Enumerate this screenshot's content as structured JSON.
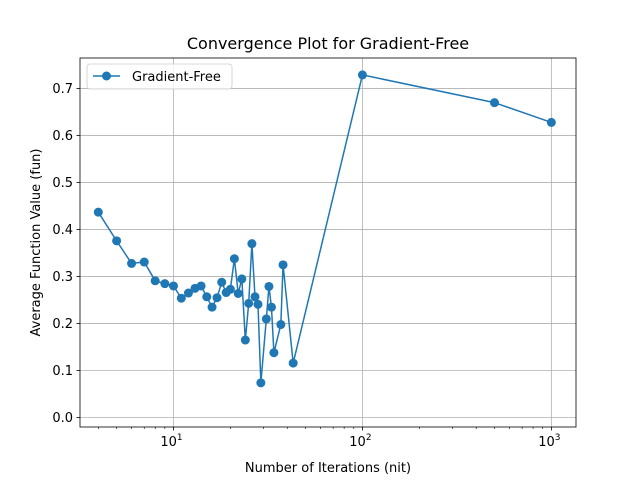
{
  "chart_data": {
    "type": "line",
    "title": "Convergence Plot for Gradient-Free",
    "xlabel": "Number of Iterations (nit)",
    "ylabel": "Average Function Value (fun)",
    "xscale": "log",
    "xlim": [
      3.2,
      1350
    ],
    "ylim": [
      -0.02,
      0.765
    ],
    "grid": true,
    "legend_loc": "upper left",
    "x_ticks": [
      {
        "value": 10,
        "base": "10",
        "exp": "1"
      },
      {
        "value": 100,
        "base": "10",
        "exp": "2"
      },
      {
        "value": 1000,
        "base": "10",
        "exp": "3"
      }
    ],
    "y_ticks": [
      {
        "value": 0.0,
        "label": "0.0"
      },
      {
        "value": 0.1,
        "label": "0.1"
      },
      {
        "value": 0.2,
        "label": "0.2"
      },
      {
        "value": 0.3,
        "label": "0.3"
      },
      {
        "value": 0.4,
        "label": "0.4"
      },
      {
        "value": 0.5,
        "label": "0.5"
      },
      {
        "value": 0.6,
        "label": "0.6"
      },
      {
        "value": 0.7,
        "label": "0.7"
      }
    ],
    "series": [
      {
        "name": "Gradient-Free",
        "color": "#1f77b4",
        "marker": "circle",
        "points": [
          [
            4,
            0.437
          ],
          [
            5,
            0.376
          ],
          [
            6,
            0.328
          ],
          [
            7,
            0.331
          ],
          [
            8,
            0.291
          ],
          [
            9,
            0.285
          ],
          [
            10,
            0.28
          ],
          [
            11,
            0.254
          ],
          [
            12,
            0.265
          ],
          [
            13,
            0.275
          ],
          [
            14,
            0.28
          ],
          [
            15,
            0.257
          ],
          [
            16,
            0.235
          ],
          [
            17,
            0.255
          ],
          [
            18,
            0.288
          ],
          [
            19,
            0.266
          ],
          [
            20,
            0.273
          ],
          [
            21,
            0.338
          ],
          [
            22,
            0.264
          ],
          [
            23,
            0.295
          ],
          [
            24,
            0.165
          ],
          [
            25,
            0.243
          ],
          [
            26,
            0.37
          ],
          [
            27,
            0.257
          ],
          [
            28,
            0.241
          ],
          [
            29,
            0.074
          ],
          [
            31,
            0.21
          ],
          [
            32,
            0.279
          ],
          [
            33,
            0.235
          ],
          [
            34,
            0.138
          ],
          [
            37,
            0.198
          ],
          [
            38,
            0.325
          ],
          [
            43,
            0.116
          ],
          [
            100,
            0.729
          ],
          [
            500,
            0.67
          ],
          [
            1000,
            0.628
          ]
        ]
      }
    ]
  }
}
